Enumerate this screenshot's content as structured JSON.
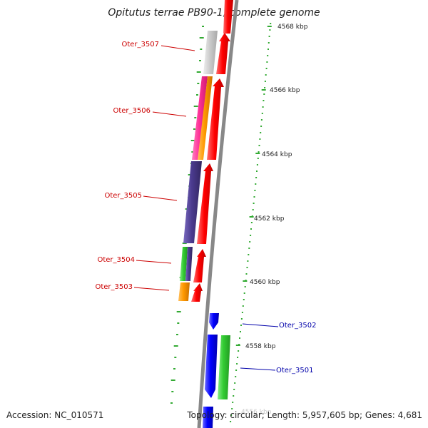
{
  "map": {
    "title": "Opitutus terrae PB90-1, complete genome",
    "ruler_ticks": [
      {
        "label": "4568 kbp",
        "value": 4568
      },
      {
        "label": "4566 kbp",
        "value": 4566
      },
      {
        "label": "4564 kbp",
        "value": 4564
      },
      {
        "label": "4562 kbp",
        "value": 4562
      },
      {
        "label": "4560 kbp",
        "value": 4560
      },
      {
        "label": "4558 kbp",
        "value": 4558
      },
      {
        "label": "4556 kbp",
        "value": 4556
      }
    ],
    "gene_labels": [
      {
        "label": "Oter_3507",
        "color": "#cc0000"
      },
      {
        "label": "Oter_3506",
        "color": "#cc0000"
      },
      {
        "label": "Oter_3505",
        "color": "#cc0000"
      },
      {
        "label": "Oter_3504",
        "color": "#cc0000"
      },
      {
        "label": "Oter_3503",
        "color": "#cc0000"
      },
      {
        "label": "Oter_3502",
        "color": "#0000aa"
      },
      {
        "label": "Oter_3501",
        "color": "#0000aa"
      }
    ],
    "colors": {
      "forward_strand": "#ff0000",
      "reverse_strand": "#0000ff",
      "backbone": "#888888",
      "gc_skew": "#33aa33",
      "cog_gray": "#c8c8c8",
      "cog_pink": "#ff3399",
      "cog_orange": "#ff9900",
      "cog_purple": "#4b3b8f",
      "cog_green": "#33cc33"
    }
  },
  "footer": {
    "accession": "Accession: NC_010571",
    "summary": "Topology: circular; Length: 5,957,605 bp; Genes: 4,681"
  }
}
